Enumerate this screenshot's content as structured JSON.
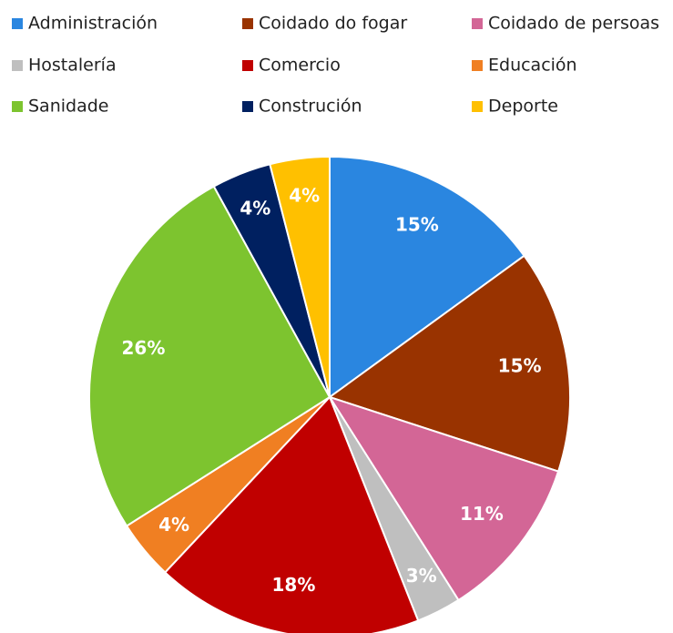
{
  "chart_data": {
    "type": "pie",
    "categories": [
      "Administración",
      "Coidado do fogar",
      "Coidado de persoas",
      "Hostalería",
      "Comercio",
      "Educación",
      "Sanidade",
      "Construción",
      "Deporte"
    ],
    "values": [
      15,
      15,
      11,
      3,
      18,
      4,
      26,
      4,
      4
    ],
    "value_labels": [
      "15%",
      "15%",
      "11%",
      "3%",
      "18%",
      "4%",
      "26%",
      "4%",
      "4%"
    ],
    "colors": [
      "#2a86e0",
      "#993300",
      "#d36696",
      "#bfbfbf",
      "#c00000",
      "#f07f22",
      "#7dc42f",
      "#002060",
      "#ffc000"
    ],
    "legend": "top"
  }
}
